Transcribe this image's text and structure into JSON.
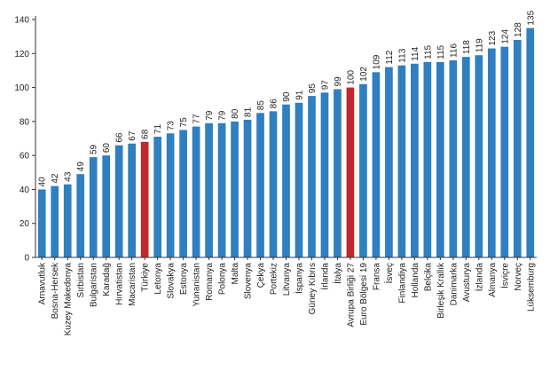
{
  "colors": {
    "default_bar": "#2f7fc1",
    "highlight_bar": "#c0282d",
    "axis": "#333333"
  },
  "chart_data": {
    "type": "bar",
    "title": "",
    "xlabel": "",
    "ylabel": "",
    "ylim": [
      0,
      140
    ],
    "yticks": [
      0,
      20,
      40,
      60,
      80,
      100,
      120,
      140
    ],
    "grid": false,
    "categories": [
      "Arnavutluk",
      "Bosna-Hersek",
      "Kuzey Makedonya",
      "Sırbistan",
      "Bulgaristan",
      "Karadağ",
      "Hırvatistan",
      "Macaristan",
      "Türkiye",
      "Letonya",
      "Slovakya",
      "Estonya",
      "Yunanistan",
      "Romanya",
      "Polonya",
      "Malta",
      "Slovenya",
      "Çekya",
      "Portekiz",
      "Litvanya",
      "İspanya",
      "Güney Kıbrıs",
      "İrlanda",
      "İtalya",
      "Avrupa Birliği 27",
      "Euro Bölgesi 19",
      "Fransa",
      "İsveç",
      "Finlandiya",
      "Hollanda",
      "Belçika",
      "Birleşik Krallık",
      "Danimarka",
      "Avusturya",
      "İzlanda",
      "Almanya",
      "İsviçre",
      "Norveç",
      "Lüksemburg"
    ],
    "values": [
      40,
      42,
      43,
      49,
      59,
      60,
      66,
      67,
      68,
      71,
      73,
      75,
      77,
      79,
      79,
      80,
      81,
      85,
      86,
      90,
      91,
      95,
      97,
      99,
      100,
      102,
      109,
      112,
      113,
      114,
      115,
      115,
      116,
      118,
      119,
      123,
      124,
      128,
      135
    ],
    "highlight": [
      "Türkiye",
      "Avrupa Birliği 27"
    ]
  }
}
